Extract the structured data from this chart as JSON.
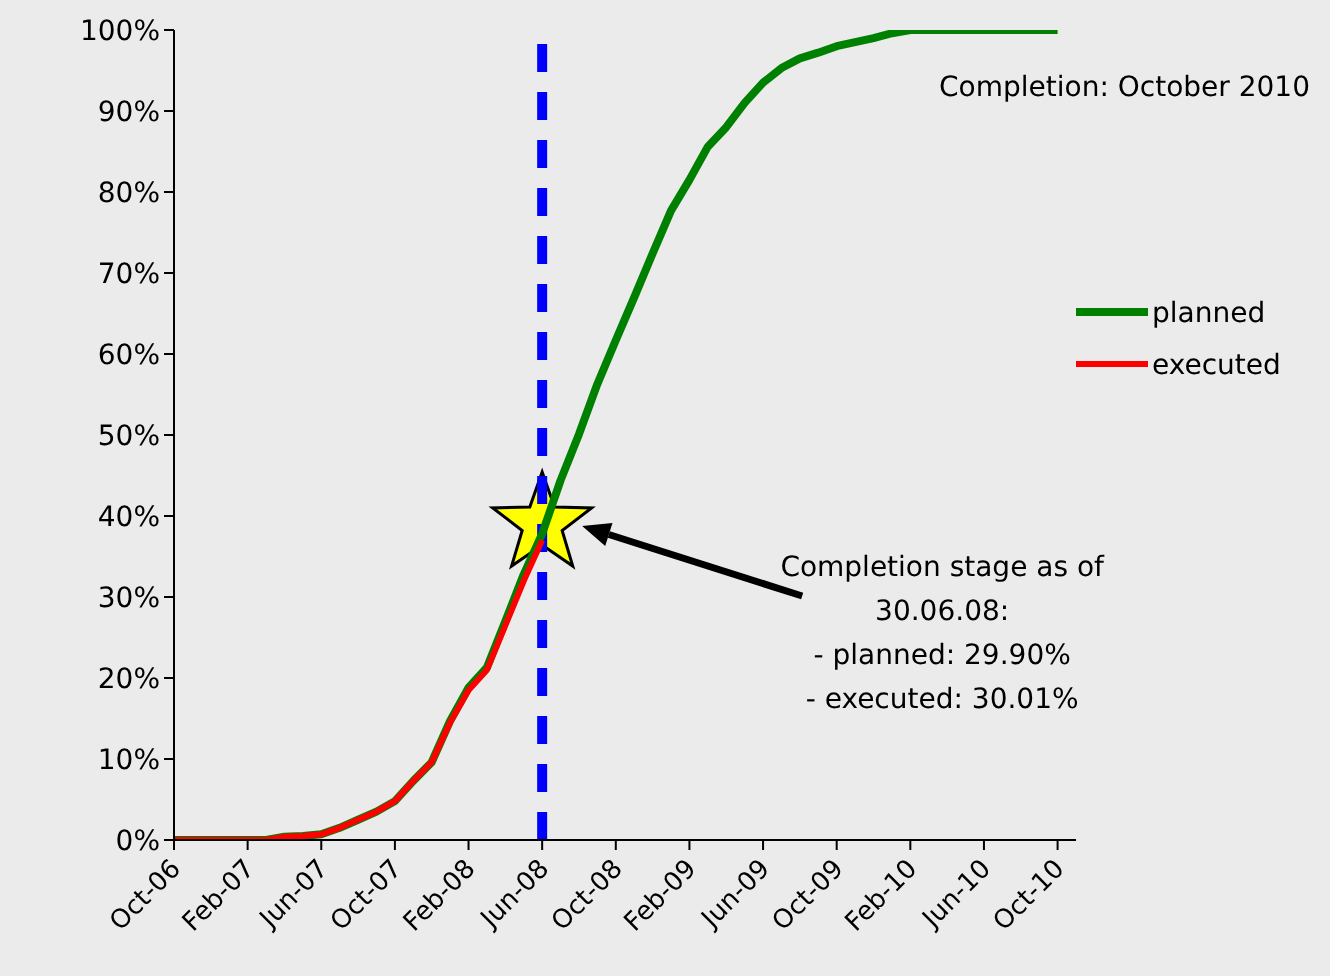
{
  "chart_data": {
    "type": "line",
    "categories": [
      "Oct-06",
      null,
      null,
      null,
      "Feb-07",
      null,
      null,
      null,
      "Jun-07",
      null,
      null,
      null,
      "Oct-07",
      null,
      null,
      null,
      "Feb-08",
      null,
      null,
      null,
      "Jun-08",
      null,
      null,
      null,
      "Oct-08",
      null,
      null,
      null,
      "Feb-09",
      null,
      null,
      null,
      "Jun-09",
      null,
      null,
      null,
      "Oct-09",
      null,
      null,
      null,
      "Feb-10",
      null,
      null,
      null,
      "Jun-10",
      null,
      null,
      null,
      "Oct-10"
    ],
    "series": [
      {
        "name": "planned",
        "color": "#008000",
        "values": [
          0,
          0,
          0,
          0,
          0,
          0,
          0.4,
          0.5,
          0.7,
          1.5,
          2.5,
          3.5,
          4.8,
          7.3,
          9.6,
          14.7,
          18.8,
          21.3,
          27,
          32.8,
          37.8,
          44.4,
          50.1,
          56.3,
          61.7,
          67,
          72.4,
          77.7,
          81.5,
          85.6,
          88,
          91,
          93.5,
          95.3,
          96.5,
          97.2,
          98,
          98.5,
          99,
          99.6,
          100,
          100,
          100,
          100,
          100,
          100,
          100,
          100,
          100
        ]
      },
      {
        "name": "executed",
        "color": "#ff0000",
        "values": [
          0,
          0,
          0,
          0,
          0,
          0,
          0.4,
          0.5,
          0.7,
          1.5,
          2.5,
          3.5,
          4.8,
          7.3,
          9.6,
          14.5,
          18.5,
          21,
          26.5,
          32,
          37,
          null,
          null,
          null,
          null,
          null,
          null,
          null,
          null,
          null,
          null,
          null,
          null,
          null,
          null,
          null,
          null,
          null,
          null,
          null,
          null,
          null,
          null,
          null,
          null,
          null,
          null,
          null,
          null
        ]
      }
    ],
    "ylim": [
      0,
      100
    ],
    "yticks": [
      {
        "value": 0,
        "label": "0%"
      },
      {
        "value": 10,
        "label": "10%"
      },
      {
        "value": 20,
        "label": "20%"
      },
      {
        "value": 30,
        "label": "30%"
      },
      {
        "value": 40,
        "label": "40%"
      },
      {
        "value": 50,
        "label": "50%"
      },
      {
        "value": 60,
        "label": "60%"
      },
      {
        "value": 70,
        "label": "70%"
      },
      {
        "value": 80,
        "label": "80%"
      },
      {
        "value": 90,
        "label": "90%"
      },
      {
        "value": 100,
        "label": "100%"
      }
    ],
    "ref_lines": [
      {
        "axis": "x",
        "value": "Jun-08",
        "color": "#0000ff",
        "line_style": "dashed"
      }
    ],
    "annotations": [
      "Completion: October 2010",
      "Completion stage as of\n30.06.08:\n- planned: 29.90%\n- executed: 30.01%"
    ],
    "legend": "right",
    "grid": false,
    "marker": "none",
    "line_style": "solid"
  }
}
